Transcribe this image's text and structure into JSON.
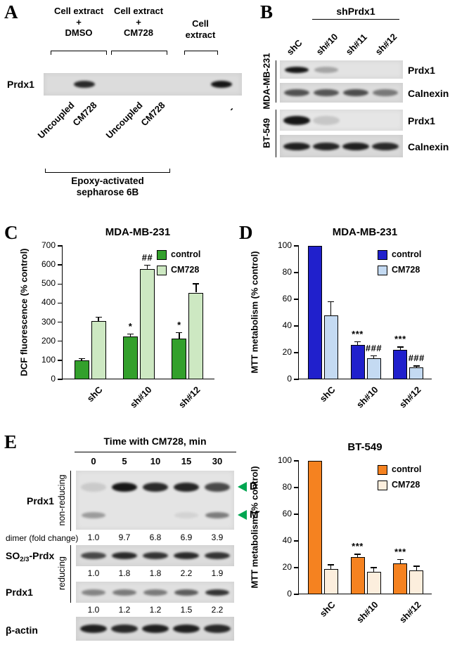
{
  "colors": {
    "band": "#161616",
    "arrow_green": "#00a651"
  },
  "panelA": {
    "letter": "A",
    "groups": [
      "Cell extract\n+\nDMSO",
      "Cell extract\n+\nCM728",
      "Cell\nextract"
    ],
    "protein_label": "Prdx1",
    "lane_labels": [
      "Uncoupled",
      "CM728",
      "Uncoupled",
      "CM728",
      "-"
    ],
    "matrix_label": "Epoxy-activated\nsepharose 6B",
    "bands": [
      0,
      0.9,
      0,
      0,
      1
    ]
  },
  "panelB": {
    "letter": "B",
    "header": "shPrdx1",
    "lane_labels": [
      "shC",
      "sh#10",
      "sh#11",
      "sh#12"
    ],
    "cell_lines": [
      "MDA-MB-231",
      "BT-549"
    ],
    "blot_labels": [
      "Prdx1",
      "Calnexin",
      "Prdx1",
      "Calnexin"
    ],
    "bands": [
      [
        1,
        0.3,
        0,
        0
      ],
      [
        0.7,
        0.68,
        0.72,
        0.5
      ],
      [
        1,
        0.15,
        0,
        0
      ],
      [
        0.95,
        0.92,
        0.95,
        0.9
      ]
    ]
  },
  "panelC": {
    "letter": "C"
  },
  "panelD": {
    "letter": "D"
  },
  "panelE": {
    "letter": "E",
    "header": "Time with CM728, min",
    "lane_numbers": [
      "0",
      "5",
      "10",
      "15",
      "30"
    ],
    "group_labels": [
      "non-reducing",
      "reducing"
    ],
    "nonreducing_blot_label": "Prdx1",
    "arrow_labels": [
      "D",
      "M"
    ],
    "arrow_color": "#00a651",
    "dimer_caption": "dimer (fold change)",
    "dimer_values": [
      "1.0",
      "9.7",
      "6.8",
      "6.9",
      "3.9"
    ],
    "so_label": {
      "pre": "SO",
      "sub": "2/3",
      "post": "-Prdx"
    },
    "so_values": [
      "1.0",
      "1.8",
      "1.8",
      "2.2",
      "1.9"
    ],
    "prdx1_label": "Prdx1",
    "prdx1_values": [
      "1.0",
      "1.2",
      "1.2",
      "1.5",
      "2.2"
    ],
    "actin_label": "β-actin",
    "bandsD": [
      0.12,
      1,
      0.9,
      0.92,
      0.75
    ],
    "bandsM": [
      0.35,
      0,
      0,
      0.08,
      0.5
    ],
    "bands_so": [
      0.75,
      0.9,
      0.85,
      0.9,
      0.85
    ],
    "bands_prdx1": [
      0.45,
      0.5,
      0.5,
      0.65,
      0.85
    ],
    "bands_actin": [
      0.95,
      0.9,
      0.95,
      0.95,
      0.9
    ]
  },
  "chart_data": [
    {
      "id": "panel-C",
      "type": "bar",
      "title": "MDA-MB-231",
      "ylabel": "DCF fluorescence (% control)",
      "ylim": [
        0,
        700
      ],
      "ytick_step": 100,
      "categories": [
        "shC",
        "sh#10",
        "sh#12"
      ],
      "series": [
        {
          "name": "control",
          "color": "#33a02c",
          "values": [
            100,
            225,
            215
          ],
          "errors": [
            8,
            12,
            30
          ],
          "sig": [
            "",
            "*",
            "*"
          ]
        },
        {
          "name": "CM728",
          "color": "#cde8c2",
          "values": [
            305,
            580,
            455
          ],
          "errors": [
            20,
            18,
            45
          ],
          "sig": [
            "",
            "##",
            ""
          ]
        }
      ],
      "legend_position": "top-right",
      "grid": false
    },
    {
      "id": "panel-D-top",
      "type": "bar",
      "title": "MDA-MB-231",
      "ylabel": "MTT metabolism (% control)",
      "ylim": [
        0,
        100
      ],
      "ytick_step": 20,
      "categories": [
        "shC",
        "sh#10",
        "sh#12"
      ],
      "series": [
        {
          "name": "control",
          "color": "#2020cc",
          "values": [
            100,
            26,
            22
          ],
          "errors": [
            0,
            2,
            2
          ],
          "sig": [
            "",
            "***",
            "***"
          ]
        },
        {
          "name": "CM728",
          "color": "#c4daf2",
          "values": [
            48,
            16,
            9
          ],
          "errors": [
            10,
            1.5,
            1
          ],
          "sig": [
            "",
            "###",
            "###"
          ]
        }
      ],
      "legend_position": "top-right",
      "grid": false
    },
    {
      "id": "panel-D-bottom",
      "type": "bar",
      "title": "BT-549",
      "ylabel": "MTT metabolism (% control)",
      "ylim": [
        0,
        100
      ],
      "ytick_step": 20,
      "categories": [
        "shC",
        "sh#10",
        "sh#12"
      ],
      "series": [
        {
          "name": "control",
          "color": "#f58220",
          "values": [
            100,
            28,
            23
          ],
          "errors": [
            0,
            2,
            3
          ],
          "sig": [
            "",
            "***",
            "***"
          ]
        },
        {
          "name": "CM728",
          "color": "#fceedd",
          "values": [
            19,
            17,
            18
          ],
          "errors": [
            3,
            3,
            3
          ],
          "sig": [
            "",
            "",
            ""
          ]
        }
      ],
      "legend_position": "top-right",
      "grid": false
    }
  ]
}
